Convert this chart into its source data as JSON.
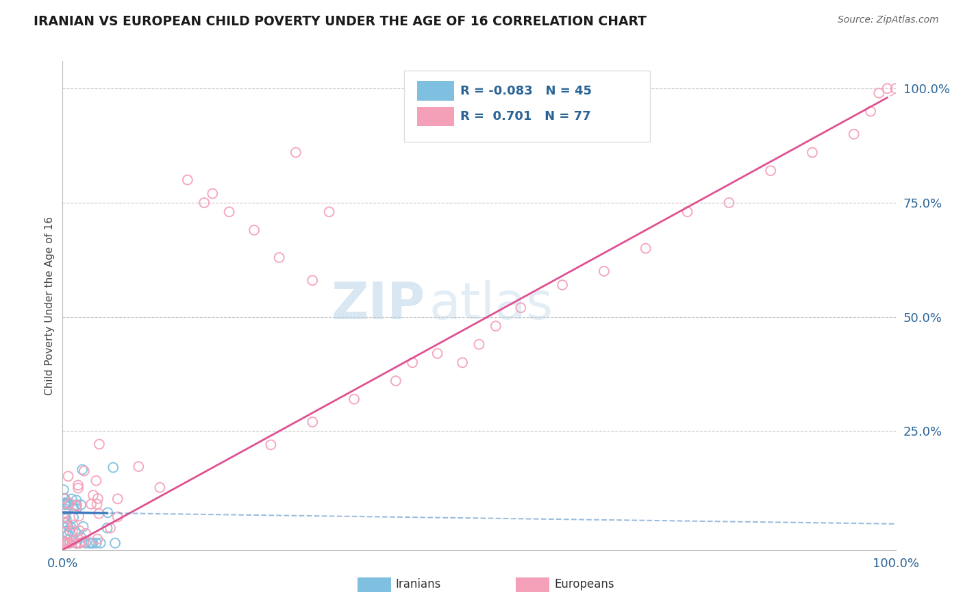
{
  "title": "IRANIAN VS EUROPEAN CHILD POVERTY UNDER THE AGE OF 16 CORRELATION CHART",
  "source": "Source: ZipAtlas.com",
  "ylabel": "Child Poverty Under the Age of 16",
  "watermark_zip": "ZIP",
  "watermark_atlas": "atlas",
  "iranians_color": "#7fbfdf",
  "europeans_color": "#f4a0b8",
  "iranians_line_color": "#3a7abf",
  "europeans_line_color": "#e05090",
  "background_color": "#ffffff",
  "grid_color": "#c8c8c8",
  "ytick_positions": [
    0.25,
    0.5,
    0.75,
    1.0
  ],
  "ytick_labels": [
    "25.0%",
    "50.0%",
    "75.0%",
    "100.0%"
  ],
  "R_iranian": -0.083,
  "R_european": 0.701,
  "N_iranian": 45,
  "N_european": 77,
  "iranians_seed": 42,
  "europeans_seed": 99
}
